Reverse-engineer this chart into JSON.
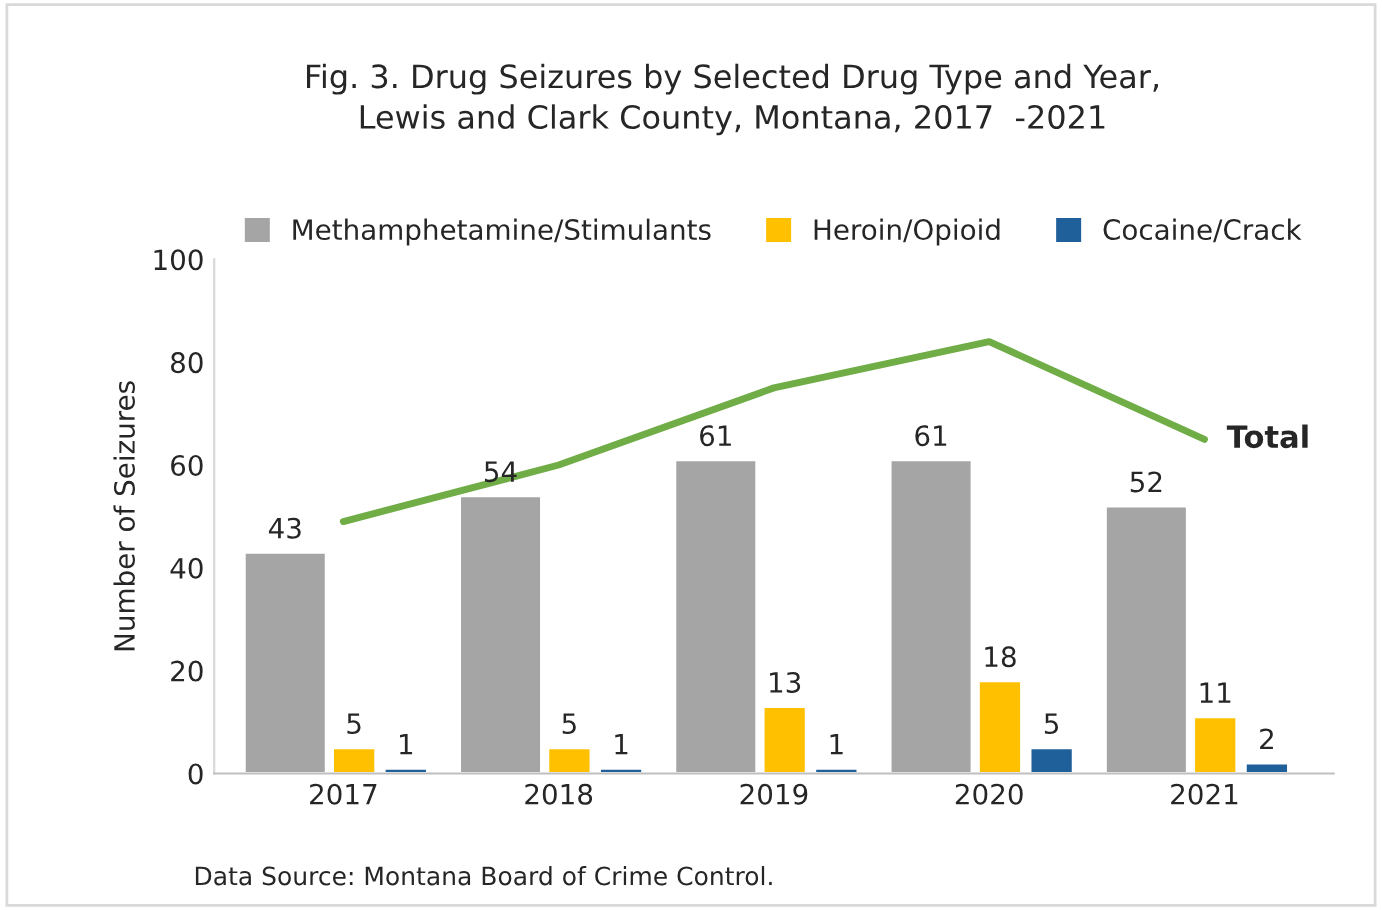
{
  "chart_data": {
    "type": "bar",
    "title": "Fig. 3. Drug Seizures by Selected Drug Type and Year,\nLewis and Clark County, Montana, 2017  -2021",
    "categories": [
      "2017",
      "2018",
      "2019",
      "2020",
      "2021"
    ],
    "ylabel": "Number of Seizures",
    "ylim": [
      0,
      100
    ],
    "yticks": [
      0,
      20,
      40,
      60,
      80,
      100
    ],
    "grid": false,
    "legend": "top",
    "series": [
      {
        "name": "Methamphetamine/Stimulants",
        "color": "#a5a5a5",
        "values": [
          43,
          54,
          61,
          61,
          52
        ],
        "value_labels": [
          "43",
          "54",
          "61",
          "61",
          "52"
        ]
      },
      {
        "name": "Heroin/Opioid",
        "color": "#ffc000",
        "values": [
          5,
          5,
          13,
          18,
          11
        ],
        "value_labels": [
          "5",
          "5",
          "13",
          "18",
          "11"
        ]
      },
      {
        "name": "Cocaine/Crack",
        "color": "#1f5f9a",
        "values": [
          1,
          1,
          1,
          5,
          2
        ],
        "value_labels": [
          "1",
          "1",
          "1",
          "5",
          "2"
        ]
      },
      {
        "name": "Total",
        "type": "line",
        "color": "#70ad47",
        "values": [
          49,
          60,
          75,
          84,
          65
        ]
      }
    ],
    "annotations": [
      "Data Source: Montana Board of Crime Control."
    ]
  }
}
